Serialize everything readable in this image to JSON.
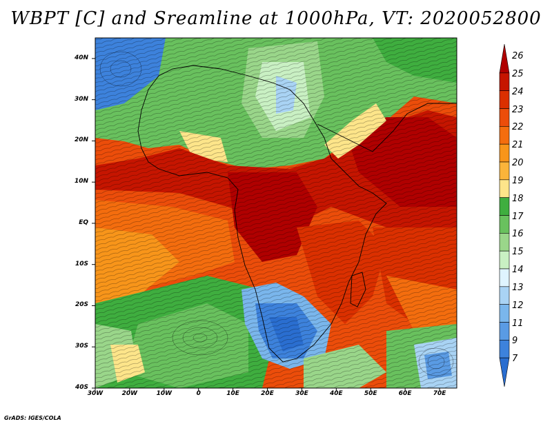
{
  "title": "WBPT [C] and Sreamline at 1000hPa, VT: 2020052800",
  "footer": "GrADS: IGES/COLA",
  "lat_labels": [
    "40N",
    "30N",
    "20N",
    "10N",
    "EQ",
    "10S",
    "20S",
    "30S",
    "40S"
  ],
  "lat_values": [
    40,
    30,
    20,
    10,
    0,
    -10,
    -20,
    -30,
    -40
  ],
  "lon_labels": [
    "30W",
    "20W",
    "10W",
    "0",
    "10E",
    "20E",
    "30E",
    "40E",
    "50E",
    "60E",
    "70E"
  ],
  "lon_values": [
    -30,
    -20,
    -10,
    0,
    10,
    20,
    30,
    40,
    50,
    60,
    70
  ],
  "extent": {
    "lon": [
      -30,
      75
    ],
    "lat": [
      -40,
      45
    ]
  },
  "colorbar": {
    "labels": [
      "26",
      "25",
      "24",
      "23",
      "22",
      "21",
      "20",
      "19",
      "18",
      "17",
      "16",
      "15",
      "14",
      "13",
      "12",
      "11",
      "9",
      "7"
    ],
    "colors": [
      "#b00000",
      "#c61500",
      "#db3000",
      "#ec4d0a",
      "#f46d0e",
      "#f8951a",
      "#fbb43a",
      "#fde58a",
      "#3fae3f",
      "#69c15e",
      "#9ad68a",
      "#c9f0c3",
      "#dff4ff",
      "#a9d3f4",
      "#7ab6ec",
      "#5a9be4",
      "#3d82dc",
      "#2a6ed0"
    ]
  },
  "fields": {
    "wbpt_units": "C",
    "level": "1000hPa",
    "valid_time": "2020052800"
  }
}
